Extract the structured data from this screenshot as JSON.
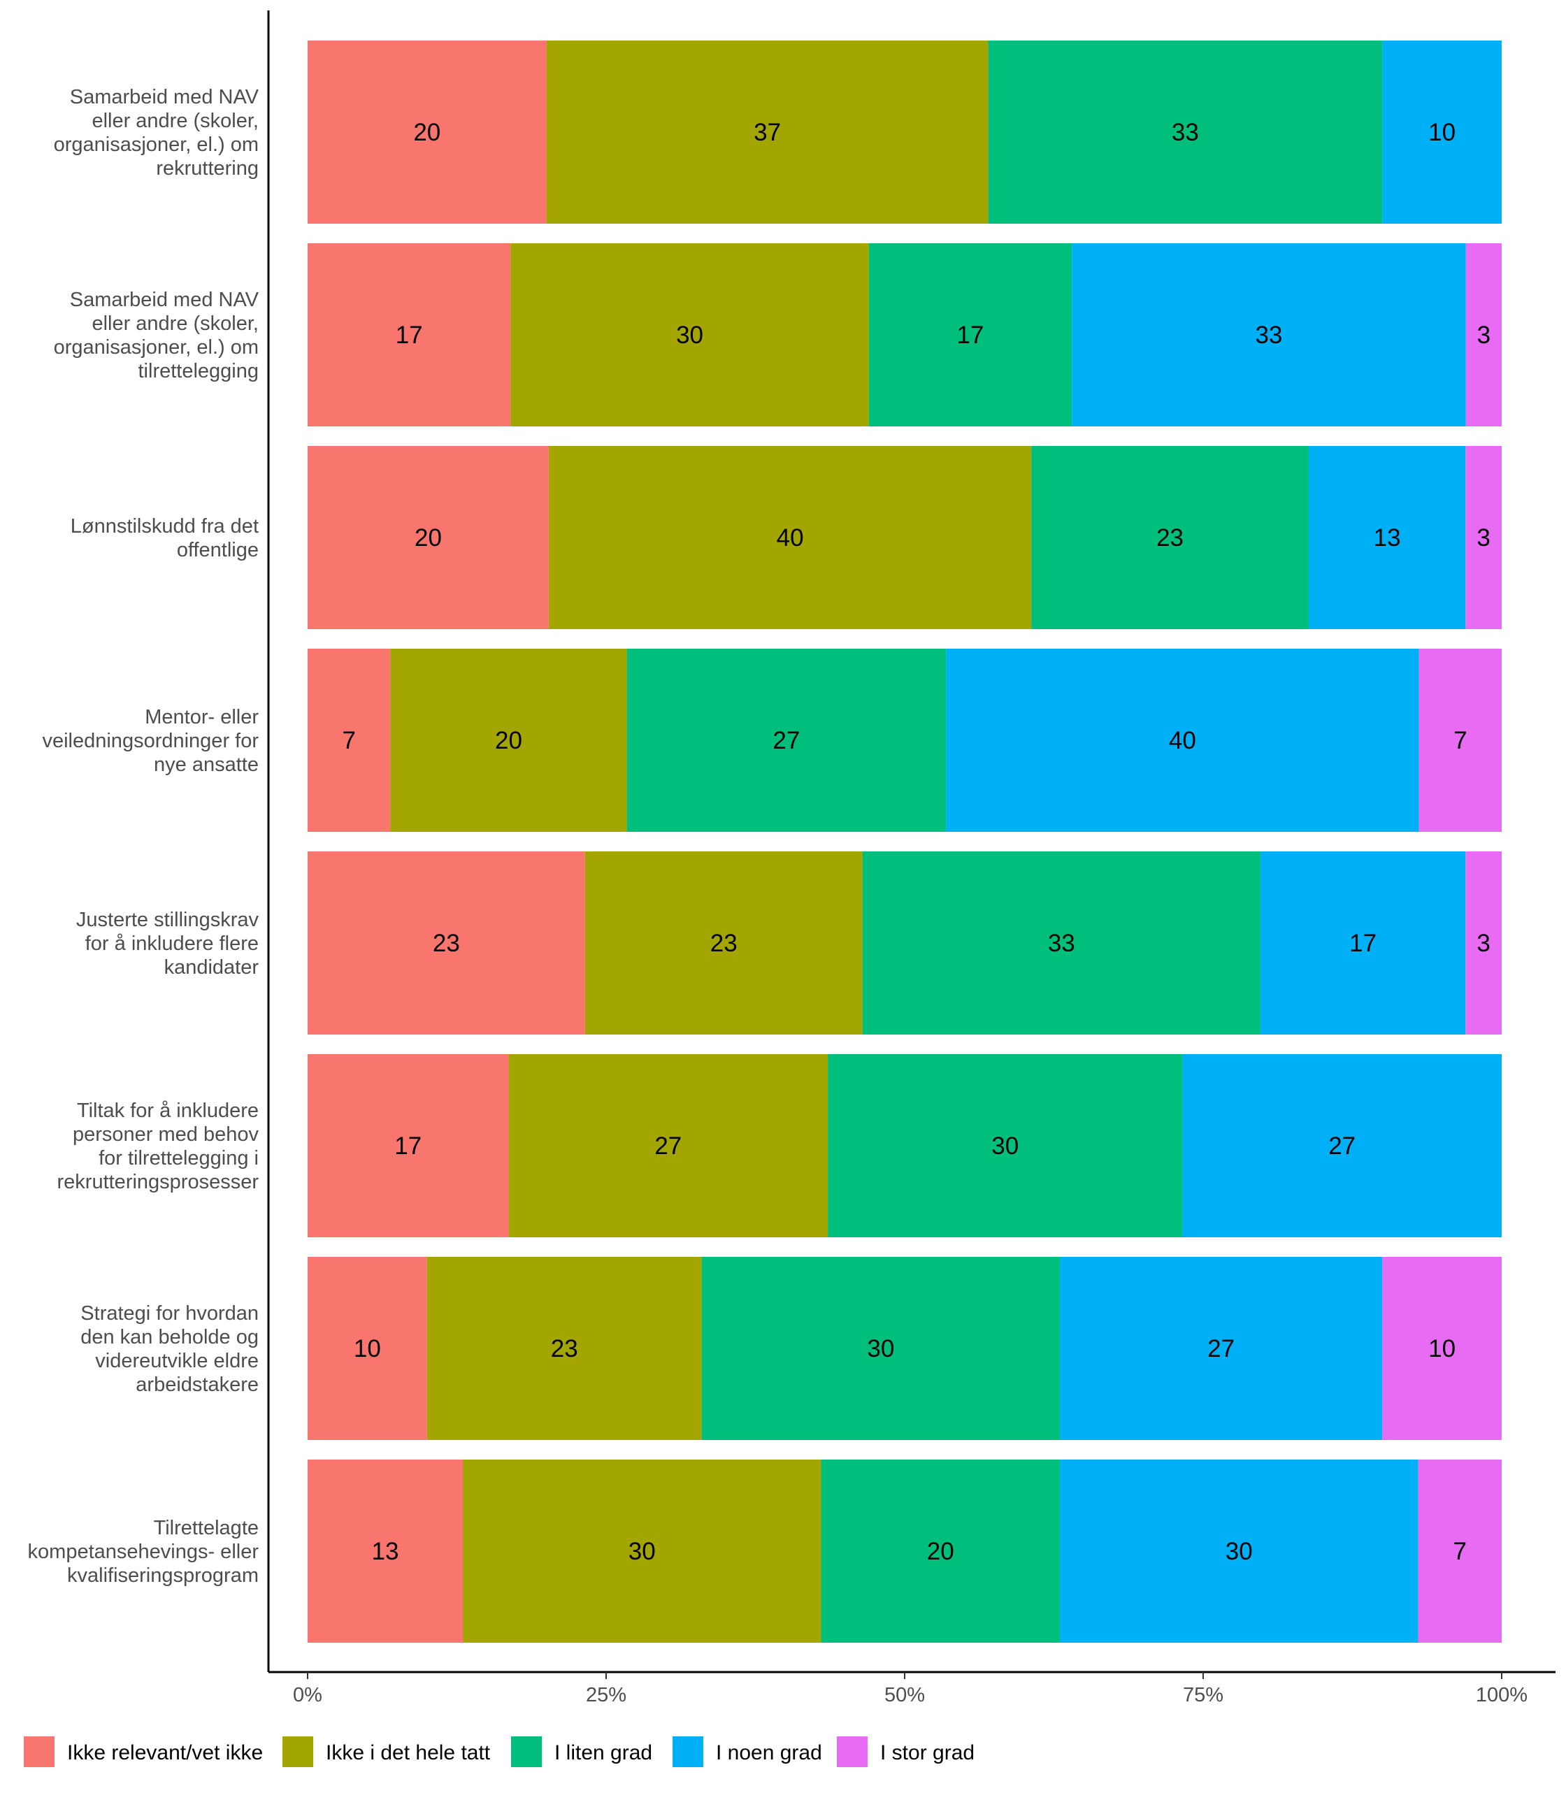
{
  "chart_data": {
    "type": "bar",
    "orientation": "horizontal",
    "stacked": true,
    "normalized": true,
    "title": "",
    "xlabel": "",
    "ylabel": "",
    "xlim": [
      0,
      100
    ],
    "grid": false,
    "legend_position": "bottom",
    "x_ticks": [
      "0%",
      "25%",
      "50%",
      "75%",
      "100%"
    ],
    "categories": [
      [
        "Samarbeid med NAV",
        "eller andre (skoler,",
        "organisasjoner, el.) om",
        "rekruttering"
      ],
      [
        "Samarbeid med NAV",
        "eller andre (skoler,",
        "organisasjoner, el.) om",
        "tilrettelegging"
      ],
      [
        "Lønnstilskudd fra det",
        "offentlige"
      ],
      [
        "Mentor- eller",
        "veiledningsordninger for",
        "nye ansatte"
      ],
      [
        "Justerte stillingskrav",
        "for å inkludere flere",
        "kandidater"
      ],
      [
        "Tiltak for å inkludere",
        "personer med behov",
        "for tilrettelegging i",
        "rekrutteringsprosesser"
      ],
      [
        "Strategi for hvordan",
        "den kan beholde og",
        "videreutvikle eldre",
        "arbeidstakere"
      ],
      [
        "Tilrettelagte",
        "kompetansehevings- eller",
        "kvalifiseringsprogram"
      ]
    ],
    "series": [
      {
        "name": "Ikke relevant/vet ikke",
        "color": "#F8766D",
        "values": [
          20,
          17,
          20,
          7,
          23,
          17,
          10,
          13
        ]
      },
      {
        "name": "Ikke i det hele tatt",
        "color": "#A3A500",
        "values": [
          37,
          30,
          40,
          20,
          23,
          27,
          23,
          30
        ]
      },
      {
        "name": "I liten grad",
        "color": "#00BF7D",
        "values": [
          33,
          17,
          23,
          27,
          33,
          30,
          30,
          20
        ]
      },
      {
        "name": "I noen grad",
        "color": "#00B0F6",
        "values": [
          10,
          33,
          13,
          40,
          17,
          27,
          27,
          30
        ]
      },
      {
        "name": "I stor grad",
        "color": "#E76BF3",
        "values": [
          0,
          3,
          3,
          7,
          3,
          0,
          10,
          7
        ]
      }
    ]
  }
}
